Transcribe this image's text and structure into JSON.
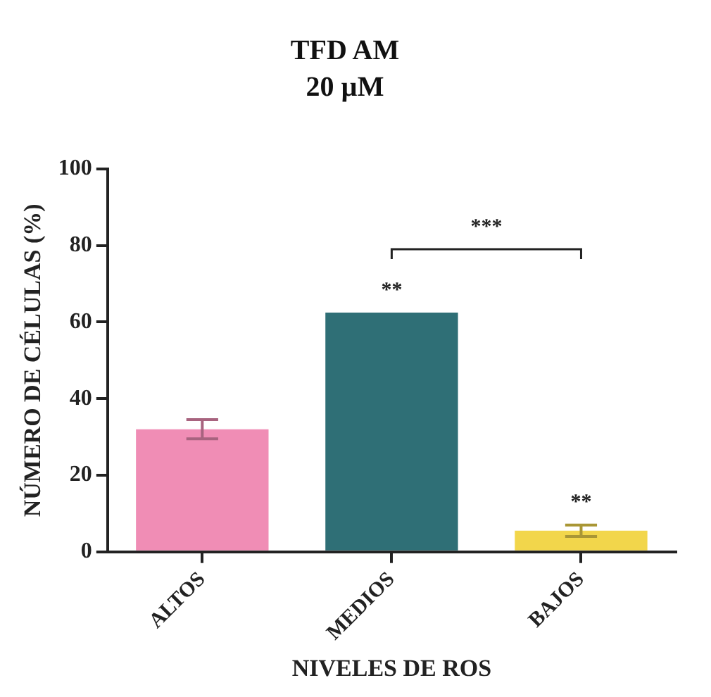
{
  "chart_data": {
    "type": "bar",
    "title": "TFD AM",
    "subtitle": "20 µM",
    "xlabel": "NIVELES DE ROS",
    "ylabel": "NÚMERO DE CÉLULAS (%)",
    "categories": [
      "ALTOS",
      "MEDIOS",
      "BAJOS"
    ],
    "values": [
      32,
      62.5,
      5.5
    ],
    "errors": [
      2.5,
      null,
      1.5
    ],
    "colors": [
      "#f08db5",
      "#2f6f76",
      "#f2d64b"
    ],
    "ylim": [
      0,
      100
    ],
    "yticks": [
      0,
      20,
      40,
      60,
      80,
      100
    ],
    "grid": false,
    "legend": false,
    "annotations": [
      "**",
      "**",
      "***"
    ]
  }
}
